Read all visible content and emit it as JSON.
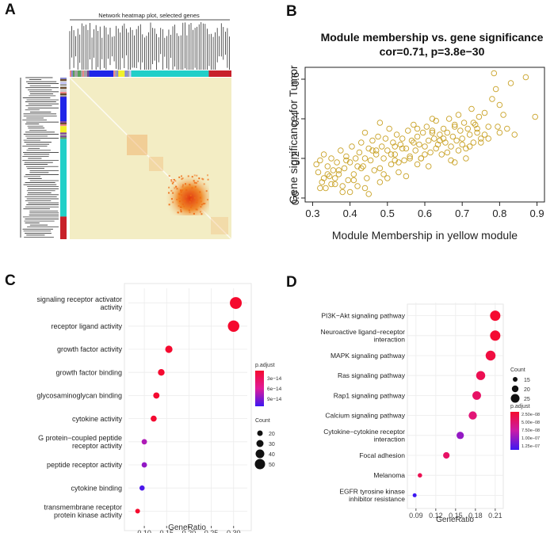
{
  "panels": {
    "a": "A",
    "b": "B",
    "c": "C",
    "d": "D"
  },
  "heatmap": {
    "title": "Network heatmap plot, selected genes",
    "colors": {
      "background": "#f3edc4",
      "hot": "#ef6b13",
      "teal": "#21cfc8",
      "blue": "#1e25e8",
      "yellow": "#f2f22a",
      "red": "#c8202a"
    }
  },
  "scatter": {
    "chart_data": {
      "type": "scatter",
      "title": "Module membership vs. gene significance",
      "subtitle": "cor=0.71, p=3.8e−30",
      "xlabel": "Module Membership in yellow module",
      "ylabel": "Gene significance for Tumor",
      "xlim": [
        0.28,
        0.92
      ],
      "ylim": [
        -0.02,
        0.66
      ],
      "xticks": [
        "0.3",
        "0.4",
        "0.5",
        "0.6",
        "0.7",
        "0.8",
        "0.9"
      ],
      "yticks": [
        "0.0",
        "0.2",
        "0.4",
        "0.6"
      ],
      "marker_color": "#c9a227",
      "points_x": [
        0.31,
        0.315,
        0.32,
        0.325,
        0.33,
        0.335,
        0.34,
        0.345,
        0.35,
        0.355,
        0.36,
        0.365,
        0.37,
        0.375,
        0.38,
        0.385,
        0.39,
        0.395,
        0.4,
        0.405,
        0.41,
        0.415,
        0.42,
        0.425,
        0.43,
        0.435,
        0.44,
        0.445,
        0.45,
        0.455,
        0.46,
        0.465,
        0.47,
        0.475,
        0.48,
        0.485,
        0.49,
        0.495,
        0.5,
        0.505,
        0.51,
        0.515,
        0.52,
        0.525,
        0.53,
        0.535,
        0.54,
        0.545,
        0.55,
        0.555,
        0.56,
        0.565,
        0.57,
        0.575,
        0.58,
        0.585,
        0.59,
        0.595,
        0.6,
        0.605,
        0.61,
        0.615,
        0.62,
        0.625,
        0.63,
        0.635,
        0.64,
        0.645,
        0.65,
        0.655,
        0.66,
        0.665,
        0.67,
        0.675,
        0.68,
        0.685,
        0.69,
        0.695,
        0.7,
        0.705,
        0.71,
        0.715,
        0.72,
        0.725,
        0.73,
        0.735,
        0.74,
        0.745,
        0.75,
        0.76,
        0.77,
        0.78,
        0.79,
        0.8,
        0.81,
        0.82,
        0.83,
        0.84,
        0.87,
        0.895,
        0.33,
        0.35,
        0.37,
        0.39,
        0.41,
        0.43,
        0.45,
        0.47,
        0.49,
        0.51,
        0.53,
        0.55,
        0.57,
        0.59,
        0.61,
        0.63,
        0.65,
        0.67,
        0.69,
        0.71,
        0.73,
        0.75,
        0.77,
        0.32,
        0.36,
        0.4,
        0.44,
        0.48,
        0.52,
        0.56,
        0.6,
        0.64,
        0.68,
        0.72,
        0.76,
        0.8,
        0.34,
        0.38,
        0.42,
        0.46,
        0.5,
        0.54,
        0.58,
        0.62,
        0.66,
        0.7,
        0.74,
        0.785,
        0.795,
        0.44,
        0.48,
        0.52,
        0.58,
        0.62,
        0.68
      ],
      "points_y": [
        0.17,
        0.13,
        0.19,
        0.08,
        0.22,
        0.05,
        0.16,
        0.11,
        0.2,
        0.14,
        0.07,
        0.18,
        0.12,
        0.24,
        0.03,
        0.15,
        0.21,
        0.09,
        0.18,
        0.26,
        0.12,
        0.2,
        0.06,
        0.23,
        0.28,
        0.16,
        0.33,
        0.1,
        0.25,
        0.19,
        0.29,
        0.14,
        0.22,
        0.31,
        0.08,
        0.26,
        0.2,
        0.3,
        0.24,
        0.35,
        0.17,
        0.28,
        0.22,
        0.32,
        0.13,
        0.27,
        0.3,
        0.19,
        0.25,
        0.34,
        0.21,
        0.29,
        0.37,
        0.24,
        0.31,
        0.27,
        0.2,
        0.33,
        0.26,
        0.36,
        0.29,
        0.23,
        0.34,
        0.3,
        0.39,
        0.27,
        0.32,
        0.22,
        0.35,
        0.28,
        0.33,
        0.4,
        0.26,
        0.31,
        0.36,
        0.29,
        0.42,
        0.34,
        0.3,
        0.38,
        0.25,
        0.35,
        0.32,
        0.45,
        0.28,
        0.37,
        0.33,
        0.41,
        0.3,
        0.43,
        0.36,
        0.5,
        0.55,
        0.47,
        0.42,
        0.35,
        0.58,
        0.32,
        0.61,
        0.41,
        0.1,
        0.07,
        0.14,
        0.19,
        0.09,
        0.15,
        0.02,
        0.24,
        0.12,
        0.22,
        0.18,
        0.11,
        0.28,
        0.2,
        0.16,
        0.25,
        0.3,
        0.19,
        0.24,
        0.2,
        0.38,
        0.28,
        0.3,
        0.05,
        0.1,
        0.03,
        0.2,
        0.15,
        0.26,
        0.2,
        0.22,
        0.29,
        0.18,
        0.26,
        0.32,
        0.33,
        0.12,
        0.06,
        0.16,
        0.24,
        0.1,
        0.25,
        0.17,
        0.33,
        0.23,
        0.27,
        0.35,
        0.63,
        0.36,
        0.05,
        0.38,
        0.19,
        0.35,
        0.4,
        0.37
      ]
    }
  },
  "go_dotplot": {
    "chart_data": {
      "type": "scatter",
      "xlabel": "GeneRatio",
      "xlim": [
        0.075,
        0.32
      ],
      "xticks": [
        "0.10",
        "0.15",
        "0.20",
        "0.25",
        "0.30"
      ],
      "categories": [
        [
          "signaling receptor activator",
          "activity"
        ],
        [
          "receptor ligand activity"
        ],
        [
          "growth factor activity"
        ],
        [
          "growth factor binding"
        ],
        [
          "glycosaminoglycan binding"
        ],
        [
          "cytokine activity"
        ],
        [
          "G protein−coupled peptide",
          "receptor activity"
        ],
        [
          "peptide receptor activity"
        ],
        [
          "cytokine binding"
        ],
        [
          "transmembrane receptor",
          "protein kinase activity"
        ]
      ],
      "gene_ratio": [
        0.305,
        0.3,
        0.155,
        0.138,
        0.127,
        0.121,
        0.1,
        0.1,
        0.095,
        0.085
      ],
      "count": [
        50,
        48,
        28,
        25,
        23,
        22,
        19,
        19,
        18,
        16
      ],
      "p_adjust": [
        1e-16,
        1e-16,
        5e-16,
        8e-16,
        1.2e-15,
        1.6e-15,
        7e-14,
        8e-14,
        1.05e-13,
        2e-16
      ],
      "legend": {
        "color_title": "p.adjust",
        "color_labels": [
          "3e−14",
          "6e−14",
          "9e−14"
        ],
        "size_title": "Count",
        "size_labels": [
          "20",
          "30",
          "40",
          "50"
        ]
      }
    }
  },
  "kegg_dotplot": {
    "chart_data": {
      "type": "scatter",
      "xlabel": "GeneRatio",
      "xlim": [
        0.083,
        0.215
      ],
      "xticks": [
        "0.09",
        "0.12",
        "0.15",
        "0.18",
        "0.21"
      ],
      "categories": [
        [
          "PI3K−Akt signaling pathway"
        ],
        [
          "Neuroactive ligand−receptor",
          "interaction"
        ],
        [
          "MAPK signaling pathway"
        ],
        [
          "Ras signaling pathway"
        ],
        [
          "Rap1 signaling pathway"
        ],
        [
          "Calcium signaling pathway"
        ],
        [
          "Cytokine−cytokine receptor",
          "interaction"
        ],
        [
          "Focal adhesion"
        ],
        [
          "Melanoma"
        ],
        [
          "EGFR tyrosine kinase",
          "inhibitor resistance"
        ]
      ],
      "gene_ratio": [
        0.21,
        0.21,
        0.203,
        0.188,
        0.182,
        0.176,
        0.157,
        0.136,
        0.096,
        0.088
      ],
      "count": [
        25,
        25,
        24,
        22,
        21,
        20,
        18,
        16,
        11,
        10
      ],
      "p_adjust": [
        1e-09,
        2e-09,
        1e-08,
        2e-08,
        3e-08,
        4e-08,
        9e-08,
        3e-08,
        2e-08,
        1.25e-07
      ],
      "legend": {
        "size_title": "Count",
        "size_labels": [
          "15",
          "20",
          "25"
        ],
        "color_title": "p.adjust",
        "color_labels": [
          "2.50e−08",
          "5.00e−08",
          "7.50e−08",
          "1.00e−07",
          "1.25e−07"
        ]
      }
    }
  }
}
